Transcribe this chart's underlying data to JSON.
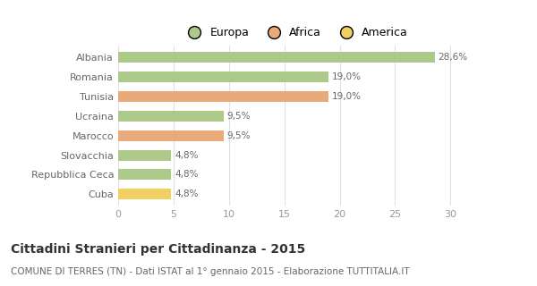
{
  "categories": [
    "Albania",
    "Romania",
    "Tunisia",
    "Ucraina",
    "Marocco",
    "Slovacchia",
    "Repubblica Ceca",
    "Cuba"
  ],
  "values": [
    28.6,
    19.0,
    19.0,
    9.5,
    9.5,
    4.8,
    4.8,
    4.8
  ],
  "labels": [
    "28,6%",
    "19,0%",
    "19,0%",
    "9,5%",
    "9,5%",
    "4,8%",
    "4,8%",
    "4,8%"
  ],
  "bar_colors": [
    "#adc98a",
    "#adc98a",
    "#e8aa7a",
    "#adc98a",
    "#e8aa7a",
    "#adc98a",
    "#adc98a",
    "#f0d060"
  ],
  "legend": [
    {
      "label": "Europa",
      "color": "#adc98a"
    },
    {
      "label": "Africa",
      "color": "#e8aa7a"
    },
    {
      "label": "America",
      "color": "#f0d060"
    }
  ],
  "xlim": [
    0,
    32
  ],
  "xticks": [
    0,
    5,
    10,
    15,
    20,
    25,
    30
  ],
  "title": "Cittadini Stranieri per Cittadinanza - 2015",
  "subtitle": "COMUNE DI TERRES (TN) - Dati ISTAT al 1° gennaio 2015 - Elaborazione TUTTITALIA.IT",
  "title_fontsize": 10,
  "subtitle_fontsize": 7.5,
  "background_color": "#ffffff",
  "grid_color": "#e0e0e0",
  "label_color": "#666666",
  "tick_color": "#999999"
}
